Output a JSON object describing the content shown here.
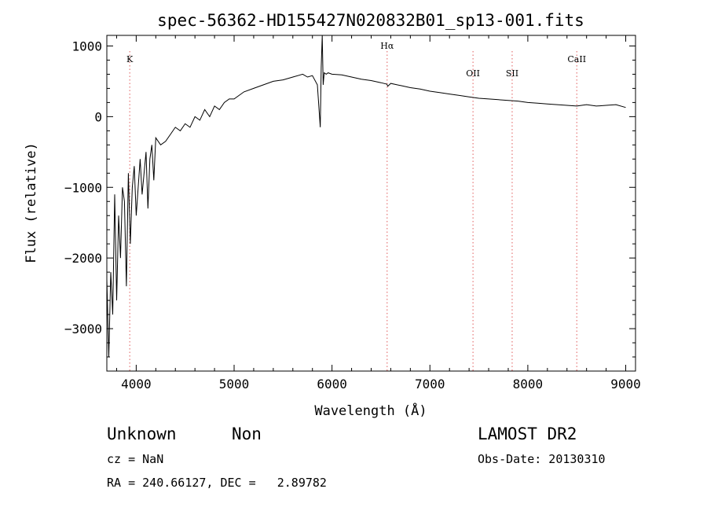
{
  "chart_data": {
    "type": "line",
    "title": "spec-56362-HD155427N020832B01_sp13-001.fits",
    "xlabel": "Wavelength (Å)",
    "ylabel": "Flux (relative)",
    "xlim": [
      3700,
      9100
    ],
    "ylim": [
      -3600,
      1150
    ],
    "xticks": [
      4000,
      5000,
      6000,
      7000,
      8000,
      9000
    ],
    "yticks": [
      -3000,
      -2000,
      -1000,
      0,
      1000
    ],
    "series": [
      {
        "name": "flux",
        "x": [
          3700,
          3720,
          3740,
          3760,
          3780,
          3800,
          3820,
          3840,
          3860,
          3880,
          3900,
          3920,
          3940,
          3960,
          3980,
          4000,
          4020,
          4040,
          4060,
          4080,
          4100,
          4120,
          4140,
          4160,
          4180,
          4200,
          4250,
          4300,
          4350,
          4400,
          4450,
          4500,
          4550,
          4600,
          4650,
          4700,
          4750,
          4800,
          4850,
          4900,
          4950,
          5000,
          5100,
          5200,
          5300,
          5400,
          5500,
          5600,
          5700,
          5750,
          5800,
          5850,
          5880,
          5890,
          5900,
          5910,
          5920,
          5940,
          5960,
          6000,
          6100,
          6200,
          6300,
          6400,
          6500,
          6560,
          6570,
          6600,
          6700,
          6800,
          6900,
          7000,
          7100,
          7200,
          7300,
          7400,
          7500,
          7600,
          7700,
          7800,
          7900,
          8000,
          8100,
          8200,
          8300,
          8400,
          8500,
          8600,
          8700,
          8800,
          8900,
          9000
        ],
        "values": [
          -2300,
          -3400,
          -2200,
          -2800,
          -1100,
          -2600,
          -1400,
          -2000,
          -1000,
          -1200,
          -2400,
          -800,
          -1800,
          -1000,
          -700,
          -1400,
          -1000,
          -600,
          -1100,
          -800,
          -500,
          -1300,
          -600,
          -400,
          -900,
          -300,
          -400,
          -350,
          -250,
          -150,
          -200,
          -100,
          -150,
          0,
          -50,
          100,
          0,
          150,
          100,
          200,
          250,
          250,
          350,
          400,
          450,
          500,
          520,
          560,
          600,
          560,
          580,
          450,
          -150,
          700,
          1150,
          450,
          620,
          600,
          620,
          600,
          590,
          560,
          530,
          510,
          480,
          460,
          430,
          470,
          440,
          410,
          390,
          360,
          340,
          320,
          300,
          280,
          260,
          250,
          240,
          230,
          220,
          200,
          190,
          180,
          170,
          160,
          150,
          170,
          150,
          160,
          170,
          130
        ]
      }
    ],
    "line_markers": [
      {
        "label": "K",
        "wavelength": 3934
      },
      {
        "label": "Hα",
        "wavelength": 6563
      },
      {
        "label": "OII",
        "wavelength": 7440
      },
      {
        "label": "SII",
        "wavelength": 7840
      },
      {
        "label": "CaII",
        "wavelength": 8500
      }
    ]
  },
  "info": {
    "class": "Unknown",
    "subclass": "Non",
    "survey": "LAMOST DR2",
    "cz": "cz = NaN",
    "obs_date": "Obs-Date: 20130310",
    "coords": "RA = 240.66127, DEC =   2.89782"
  }
}
